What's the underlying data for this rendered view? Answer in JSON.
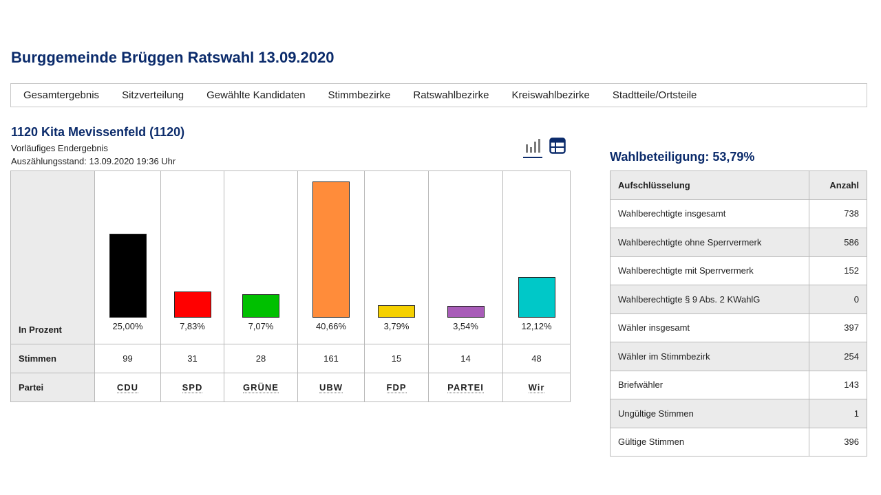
{
  "page": {
    "title": "Burggemeinde Brüggen Ratswahl 13.09.2020"
  },
  "nav": {
    "items": [
      "Gesamtergebnis",
      "Sitzverteilung",
      "Gewählte Kandidaten",
      "Stimmbezirke",
      "Ratswahlbezirke",
      "Kreiswahlbezirke",
      "Stadtteile/Ortsteile"
    ]
  },
  "district": {
    "title": "1120 Kita Mevissenfeld (1120)",
    "status": "Vorläufiges Endergebnis",
    "count_state": "Auszählungsstand: 13.09.2020 19:36 Uhr"
  },
  "view_toggle": {
    "icons": [
      "bar-chart-icon",
      "table-icon"
    ],
    "active": "bar-chart-icon"
  },
  "result_table": {
    "row_labels": {
      "percent": "In Prozent",
      "votes": "Stimmen",
      "party": "Partei"
    }
  },
  "chart_data": {
    "type": "bar",
    "categories": [
      "CDU",
      "SPD",
      "GRÜNE",
      "UBW",
      "FDP",
      "PARTEI",
      "Wir"
    ],
    "values": [
      25.0,
      7.83,
      7.07,
      40.66,
      3.79,
      3.54,
      12.12
    ],
    "value_labels": [
      "25,00%",
      "7,83%",
      "7,07%",
      "40,66%",
      "3,79%",
      "3,54%",
      "12,12%"
    ],
    "votes": [
      99,
      31,
      28,
      161,
      15,
      14,
      48
    ],
    "colors": [
      "#000000",
      "#ff0000",
      "#00c000",
      "#ff8c3a",
      "#f5d000",
      "#a85cb8",
      "#00c8c8"
    ],
    "ylim": [
      0,
      41
    ],
    "ylabel": "In Prozent",
    "xlabel": "Partei",
    "grid": false,
    "legend": "none"
  },
  "turnout": {
    "title": "Wahlbeteiligung: 53,79%"
  },
  "stats": {
    "headers": [
      "Aufschlüsselung",
      "Anzahl"
    ],
    "rows": [
      {
        "label": "Wahlberechtigte insgesamt",
        "value": "738"
      },
      {
        "label": "Wahlberechtigte ohne Sperrvermerk",
        "value": "586"
      },
      {
        "label": "Wahlberechtigte mit Sperrvermerk",
        "value": "152"
      },
      {
        "label": "Wahlberechtigte § 9 Abs. 2 KWahlG",
        "value": "0"
      },
      {
        "label": "Wähler insgesamt",
        "value": "397"
      },
      {
        "label": "Wähler im Stimmbezirk",
        "value": "254"
      },
      {
        "label": "Briefwähler",
        "value": "143"
      },
      {
        "label": "Ungültige Stimmen",
        "value": "1"
      },
      {
        "label": "Gültige Stimmen",
        "value": "396"
      }
    ]
  }
}
